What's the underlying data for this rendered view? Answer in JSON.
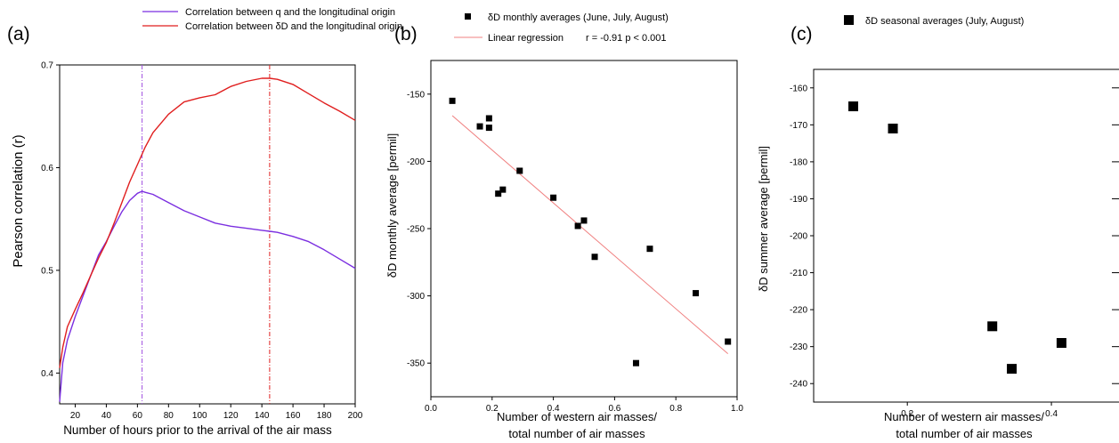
{
  "chart_data": [
    {
      "panel": "(a)",
      "type": "line",
      "xlabel": "Number of hours prior to the arrival of the air mass",
      "ylabel": "Pearson correlation (r)",
      "xlim": [
        10,
        200
      ],
      "ylim": [
        0.37,
        0.7
      ],
      "xticks": [
        "20",
        "40",
        "60",
        "80",
        "100",
        "120",
        "140",
        "160",
        "180",
        "200"
      ],
      "yticks": [
        "0.4",
        "0.5",
        "0.6",
        "0.7"
      ],
      "xtick_values": [
        20,
        40,
        60,
        80,
        100,
        120,
        140,
        160,
        180,
        200
      ],
      "ytick_values": [
        0.4,
        0.5,
        0.6,
        0.7
      ],
      "series": [
        {
          "name": "Correlation between q and the longitudinal origin",
          "color": "#7b2fe0",
          "x": [
            10,
            12,
            15,
            20,
            25,
            30,
            35,
            40,
            45,
            50,
            55,
            60,
            63,
            65,
            70,
            80,
            90,
            100,
            110,
            120,
            130,
            140,
            145,
            150,
            160,
            170,
            180,
            190,
            200
          ],
          "y": [
            0.372,
            0.41,
            0.432,
            0.455,
            0.475,
            0.495,
            0.515,
            0.528,
            0.543,
            0.557,
            0.568,
            0.575,
            0.577,
            0.576,
            0.574,
            0.566,
            0.558,
            0.552,
            0.546,
            0.543,
            0.541,
            0.539,
            0.538,
            0.537,
            0.533,
            0.528,
            0.52,
            0.511,
            0.502
          ]
        },
        {
          "name": "Correlation between δD and the longitudinal origin",
          "color": "#e01e1e",
          "x": [
            10,
            12,
            15,
            20,
            25,
            30,
            35,
            40,
            45,
            50,
            55,
            60,
            65,
            70,
            80,
            90,
            100,
            110,
            120,
            130,
            140,
            145,
            150,
            160,
            170,
            180,
            190,
            200
          ],
          "y": [
            0.405,
            0.425,
            0.445,
            0.462,
            0.478,
            0.495,
            0.512,
            0.527,
            0.546,
            0.566,
            0.586,
            0.603,
            0.62,
            0.634,
            0.652,
            0.664,
            0.668,
            0.671,
            0.679,
            0.684,
            0.687,
            0.687,
            0.686,
            0.681,
            0.672,
            0.663,
            0.655,
            0.646
          ]
        }
      ],
      "vlines": [
        {
          "x": 63,
          "color": "#a04de0"
        },
        {
          "x": 145,
          "color": "#e01e1e"
        }
      ]
    },
    {
      "panel": "(b)",
      "type": "scatter",
      "xlabel": "Number of western air masses/ total number of air masses",
      "xlabel_lines": [
        "Number of western air masses/",
        "total number of air masses"
      ],
      "ylabel": "δD monthly average [permil]",
      "xlim": [
        0.0,
        1.0
      ],
      "ylim": [
        -375,
        -125
      ],
      "xticks": [
        "0.0",
        "0.2",
        "0.4",
        "0.6",
        "0.8",
        "1.0"
      ],
      "yticks": [
        "-150",
        "-200",
        "-250",
        "-300",
        "-350"
      ],
      "xtick_values": [
        0.0,
        0.2,
        0.4,
        0.6,
        0.8,
        1.0
      ],
      "ytick_values": [
        -150,
        -200,
        -250,
        -300,
        -350
      ],
      "series": [
        {
          "name": "δD monthly averages (June, July, August)",
          "marker": "square",
          "color": "#000000",
          "x": [
            0.07,
            0.16,
            0.19,
            0.19,
            0.22,
            0.235,
            0.29,
            0.4,
            0.48,
            0.5,
            0.535,
            0.67,
            0.715,
            0.865,
            0.97
          ],
          "y": [
            -155,
            -174,
            -168,
            -175,
            -224,
            -221,
            -207,
            -227,
            -248,
            -244,
            -271,
            -350,
            -265,
            -298,
            -334
          ]
        }
      ],
      "regression": {
        "name": "Linear regression",
        "stats_label": "r = -0.91 p < 0.001",
        "color": "#f08080",
        "x": [
          0.07,
          0.97
        ],
        "y": [
          -166,
          -343
        ]
      }
    },
    {
      "panel": "(c)",
      "type": "scatter",
      "xlabel": "Number of western air masses/ total number of air masses",
      "xlabel_lines": [
        "Number of western air masses/",
        "total number of air masses"
      ],
      "ylabel": "δD summer average [permil]",
      "xlim": [
        0.07,
        0.5
      ],
      "ylim": [
        -245,
        -155
      ],
      "xticks": [
        "0.2",
        "0.4"
      ],
      "yticks": [
        "-160",
        "-170",
        "-180",
        "-190",
        "-200",
        "-210",
        "-220",
        "-230",
        "-240"
      ],
      "xtick_values": [
        0.2,
        0.4
      ],
      "ytick_values": [
        -160,
        -170,
        -180,
        -190,
        -200,
        -210,
        -220,
        -230,
        -240
      ],
      "series": [
        {
          "name": "δD seasonal averages (July, August)",
          "marker": "square",
          "color": "#000000",
          "x": [
            0.125,
            0.18,
            0.318,
            0.345,
            0.414
          ],
          "y": [
            -165,
            -171,
            -224.5,
            -236,
            -229
          ]
        }
      ]
    }
  ]
}
